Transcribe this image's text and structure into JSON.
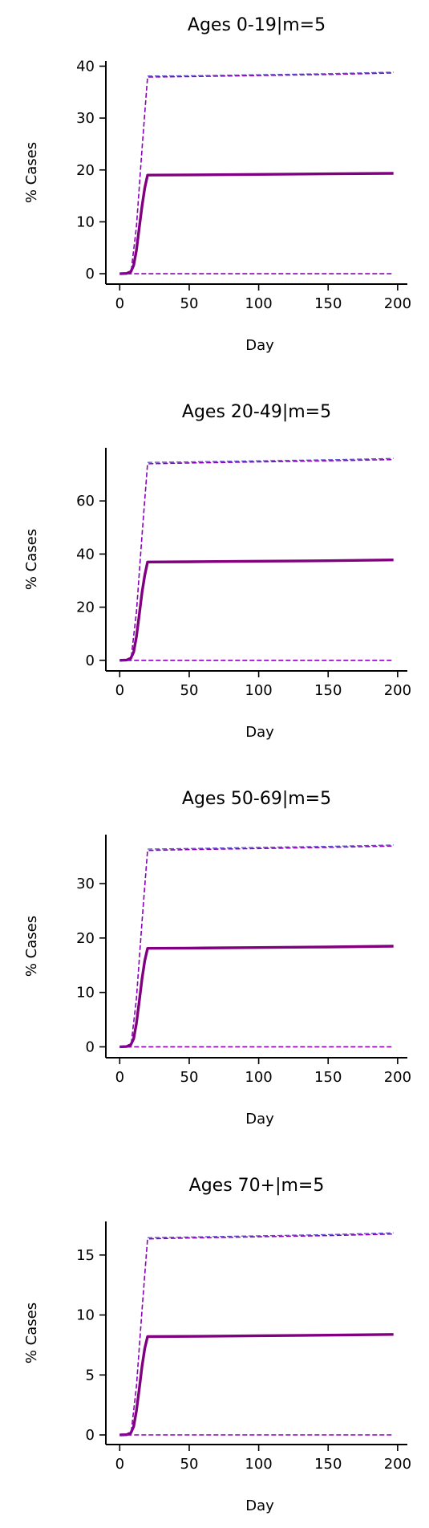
{
  "chart_data": [
    {
      "type": "line",
      "title": "Ages 0-19|m=5",
      "xlabel": "Day",
      "ylabel": "% Cases",
      "xlim": [
        -10,
        207
      ],
      "ylim": [
        -2,
        41
      ],
      "xticks": [
        0,
        50,
        100,
        150,
        200
      ],
      "yticks": [
        0,
        10,
        20,
        30,
        40
      ],
      "grid": false,
      "series": [
        {
          "role": "mean",
          "x": [
            0,
            5,
            8,
            10,
            12,
            14,
            16,
            18,
            20,
            50,
            100,
            150,
            197
          ],
          "values": [
            0,
            0.05,
            0.4,
            1.6,
            4.5,
            8.8,
            13,
            16.5,
            19.0,
            19.05,
            19.15,
            19.25,
            19.35
          ]
        },
        {
          "role": "upper-bound",
          "x": [
            0,
            8,
            12,
            16,
            20,
            50,
            100,
            150,
            197
          ],
          "values": [
            0,
            0,
            9,
            24,
            37.9,
            38.0,
            38.2,
            38.4,
            38.7
          ]
        },
        {
          "role": "upper-bound-alt",
          "x": [
            20,
            50,
            100,
            150,
            197
          ],
          "values": [
            38.1,
            38.15,
            38.35,
            38.55,
            38.85
          ]
        },
        {
          "role": "lower-bound",
          "x": [
            0,
            197
          ],
          "values": [
            0,
            0
          ]
        }
      ]
    },
    {
      "type": "line",
      "title": "Ages 20-49|m=5",
      "xlabel": "Day",
      "ylabel": "% Cases",
      "xlim": [
        -10,
        207
      ],
      "ylim": [
        -4,
        80
      ],
      "xticks": [
        0,
        50,
        100,
        150,
        200
      ],
      "yticks": [
        0,
        20,
        40,
        60
      ],
      "grid": false,
      "series": [
        {
          "role": "mean",
          "x": [
            0,
            5,
            8,
            10,
            12,
            14,
            16,
            18,
            20,
            50,
            100,
            150,
            197
          ],
          "values": [
            0,
            0.1,
            0.8,
            3.1,
            8.8,
            17,
            25.5,
            32,
            37.0,
            37.1,
            37.3,
            37.5,
            37.8
          ]
        },
        {
          "role": "upper-bound",
          "x": [
            0,
            8,
            12,
            16,
            20,
            50,
            100,
            150,
            197
          ],
          "values": [
            0,
            0,
            18,
            47,
            74.0,
            74.3,
            74.7,
            75.1,
            75.6
          ]
        },
        {
          "role": "upper-bound-alt",
          "x": [
            20,
            50,
            100,
            150,
            197
          ],
          "values": [
            74.5,
            74.7,
            75.1,
            75.5,
            76.0
          ]
        },
        {
          "role": "lower-bound",
          "x": [
            0,
            197
          ],
          "values": [
            0,
            0
          ]
        }
      ]
    },
    {
      "type": "line",
      "title": "Ages 50-69|m=5",
      "xlabel": "Day",
      "ylabel": "% Cases",
      "xlim": [
        -10,
        207
      ],
      "ylim": [
        -2,
        39
      ],
      "xticks": [
        0,
        50,
        100,
        150,
        200
      ],
      "yticks": [
        0,
        10,
        20,
        30
      ],
      "grid": false,
      "series": [
        {
          "role": "mean",
          "x": [
            0,
            5,
            8,
            10,
            12,
            14,
            16,
            18,
            20,
            50,
            100,
            150,
            197
          ],
          "values": [
            0,
            0.05,
            0.4,
            1.5,
            4.3,
            8.3,
            12.5,
            15.8,
            18.1,
            18.15,
            18.25,
            18.35,
            18.5
          ]
        },
        {
          "role": "upper-bound",
          "x": [
            0,
            8,
            12,
            16,
            20,
            50,
            100,
            150,
            197
          ],
          "values": [
            0,
            0,
            8.8,
            23,
            36.1,
            36.25,
            36.45,
            36.65,
            36.9
          ]
        },
        {
          "role": "upper-bound-alt",
          "x": [
            20,
            50,
            100,
            150,
            197
          ],
          "values": [
            36.35,
            36.45,
            36.65,
            36.85,
            37.1
          ]
        },
        {
          "role": "lower-bound",
          "x": [
            0,
            197
          ],
          "values": [
            0,
            0
          ]
        }
      ]
    },
    {
      "type": "line",
      "title": "Ages 70+|m=5",
      "xlabel": "Day",
      "ylabel": "% Cases",
      "xlim": [
        -10,
        207
      ],
      "ylim": [
        -0.8,
        17.8
      ],
      "xticks": [
        0,
        50,
        100,
        150,
        200
      ],
      "yticks": [
        0,
        5,
        10,
        15
      ],
      "grid": false,
      "series": [
        {
          "role": "mean",
          "x": [
            0,
            5,
            8,
            10,
            12,
            14,
            16,
            18,
            20,
            50,
            100,
            150,
            197
          ],
          "values": [
            0,
            0.02,
            0.18,
            0.7,
            2.0,
            3.8,
            5.7,
            7.2,
            8.2,
            8.22,
            8.27,
            8.32,
            8.38
          ]
        },
        {
          "role": "upper-bound",
          "x": [
            0,
            8,
            12,
            16,
            20,
            50,
            100,
            150,
            197
          ],
          "values": [
            0,
            0,
            4.0,
            10.4,
            16.35,
            16.42,
            16.52,
            16.62,
            16.75
          ]
        },
        {
          "role": "upper-bound-alt",
          "x": [
            20,
            50,
            100,
            150,
            197
          ],
          "values": [
            16.45,
            16.5,
            16.6,
            16.7,
            16.85
          ]
        },
        {
          "role": "lower-bound",
          "x": [
            0,
            197
          ],
          "values": [
            0,
            0
          ]
        }
      ]
    }
  ],
  "colors": {
    "mean": "#800080",
    "bound": "#8b00b8",
    "bound_alt": "#5b50c8",
    "axis": "#000000"
  }
}
